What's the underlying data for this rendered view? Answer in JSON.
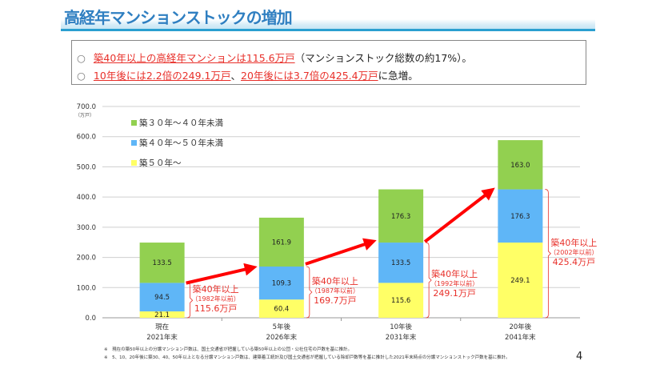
{
  "header": {
    "title": "高経年マンションストックの増加"
  },
  "summary": {
    "bullet": "○",
    "line1_red": "築40年以上の高経年マンションは115.6万戸",
    "line1_rest": "（マンションストック総数の約17%）。",
    "line2_red_a": "10年後には2.2倍の249.1万戸",
    "line2_sep": "、",
    "line2_red_b": "20年後には3.7倍の425.4万戸",
    "line2_rest": "に急増。"
  },
  "chart_data": {
    "type": "bar",
    "stacked": true,
    "categories": [
      [
        "現在",
        "2021年末"
      ],
      [
        "5年後",
        "2026年末"
      ],
      [
        "10年後",
        "2031年末"
      ],
      [
        "20年後",
        "2041年末"
      ]
    ],
    "series": [
      {
        "name": "築５０年～",
        "color": "#ffff66",
        "values": [
          21.1,
          60.4,
          115.6,
          249.1
        ]
      },
      {
        "name": "築４０年～５０年未満",
        "color": "#5fb6f7",
        "values": [
          94.5,
          109.3,
          133.5,
          176.3
        ]
      },
      {
        "name": "築３０年～４０年未満",
        "color": "#92d050",
        "values": [
          133.5,
          161.9,
          176.3,
          163.0
        ]
      }
    ],
    "ylim": [
      0,
      700
    ],
    "yticks": [
      "0.0",
      "100.0",
      "200.0",
      "300.0",
      "400.0",
      "500.0",
      "600.0",
      "700.0"
    ],
    "yunit": "（万戸）",
    "grid": true,
    "legend_position": "top-left",
    "annotations": [
      {
        "line1": "築40年以上",
        "line2": "（1982年以前）",
        "line3": "115.6万戸"
      },
      {
        "line1": "築40年以上",
        "line2": "（1987年以前）",
        "line3": "169.7万戸"
      },
      {
        "line1": "築40年以上",
        "line2": "（1992年以前）",
        "line3": "249.1万戸"
      },
      {
        "line1": "築40年以上",
        "line2": "（2002年以前）",
        "line3": "425.4万戸"
      }
    ],
    "arrow_color": "#ff0000",
    "annotation_color": "#e8302a"
  },
  "footnotes": [
    "※　現在の築50年以上の分譲マンション戸数は、国土交通省が把握している築50年以上の公団・公社住宅の戸数を基に推計。",
    "※　5、10、20年後に築30、40、50年以上となる分譲マンション戸数は、建築着工統計及び国土交通省が把握している除却戸数等を基に推計した2021年末時点の分譲マンションストック戸数を基に推計。"
  ],
  "page_number": "4"
}
